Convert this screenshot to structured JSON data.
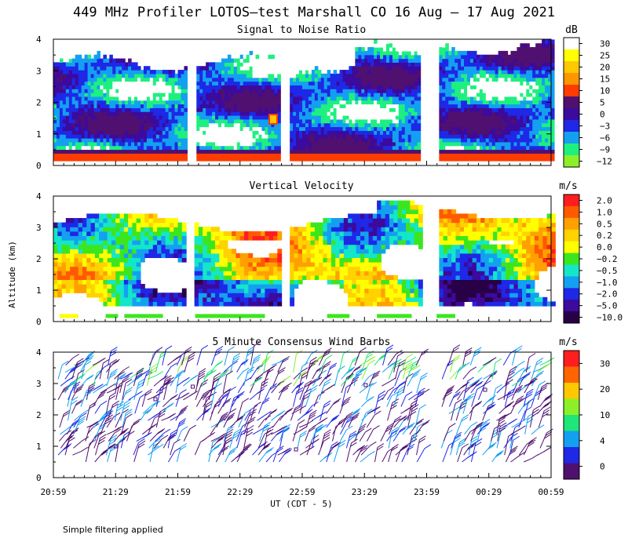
{
  "chart_data": {
    "type": "heatmap",
    "title": "449 MHz Profiler LOTOS—test Marshall CO 16 Aug — 17 Aug 2021",
    "xlabel": "UT  (CDT - 5)",
    "ylabel": "Altitude (km)",
    "x_ticks": [
      "20:59",
      "21:29",
      "21:59",
      "22:29",
      "22:59",
      "23:29",
      "23:59",
      "00:29",
      "00:59"
    ],
    "footnote": "Simple filtering applied",
    "panels": [
      {
        "title": "Signal to Noise Ratio",
        "unit": "dB",
        "ylim": [
          0,
          4
        ],
        "y_ticks": [
          "0",
          "1",
          "2",
          "3",
          "4"
        ],
        "colorbar": {
          "labels": [
            "30",
            "25",
            "20",
            "15",
            "10",
            "5",
            "0",
            "−3",
            "−6",
            "−9",
            "−12"
          ],
          "colors": [
            "#ffffff",
            "#ffff00",
            "#ffc800",
            "#ff9600",
            "#ff3c00",
            "#501070",
            "#3c0a9c",
            "#1e28e6",
            "#14a0f0",
            "#1ef080",
            "#8cf028"
          ]
        }
      },
      {
        "title": "Vertical Velocity",
        "unit": "m/s",
        "ylim": [
          0,
          4
        ],
        "y_ticks": [
          "0",
          "1",
          "2",
          "3",
          "4"
        ],
        "colorbar": {
          "labels": [
            "2.0",
            "1.0",
            "0.5",
            "0.2",
            "0.0",
            "−0.2",
            "−0.5",
            "−1.0",
            "−2.0",
            "−5.0",
            "−10.0"
          ],
          "colors": [
            "#ff1e1e",
            "#ff5a00",
            "#ffa000",
            "#ffd200",
            "#ffff00",
            "#3ce61e",
            "#14e6c8",
            "#14a0f0",
            "#1e28e6",
            "#3c0a9c",
            "#280046"
          ]
        }
      },
      {
        "title": "5 Minute Consensus Wind Barbs",
        "unit": "m/s",
        "ylim": [
          0,
          4
        ],
        "y_ticks": [
          "0",
          "1",
          "2",
          "3",
          "4"
        ],
        "colorbar": {
          "labels": [
            "30",
            "20",
            "10",
            "4",
            "0"
          ],
          "colors": [
            "#ff1e1e",
            "#ff6400",
            "#ffc800",
            "#8cf028",
            "#1ee678",
            "#14a0f0",
            "#1e28e6",
            "#501070"
          ]
        }
      }
    ],
    "data_gaps_hours": [
      [
        1.06,
        1.13
      ],
      [
        1.81,
        1.89
      ],
      [
        2.94,
        3.08
      ]
    ]
  }
}
